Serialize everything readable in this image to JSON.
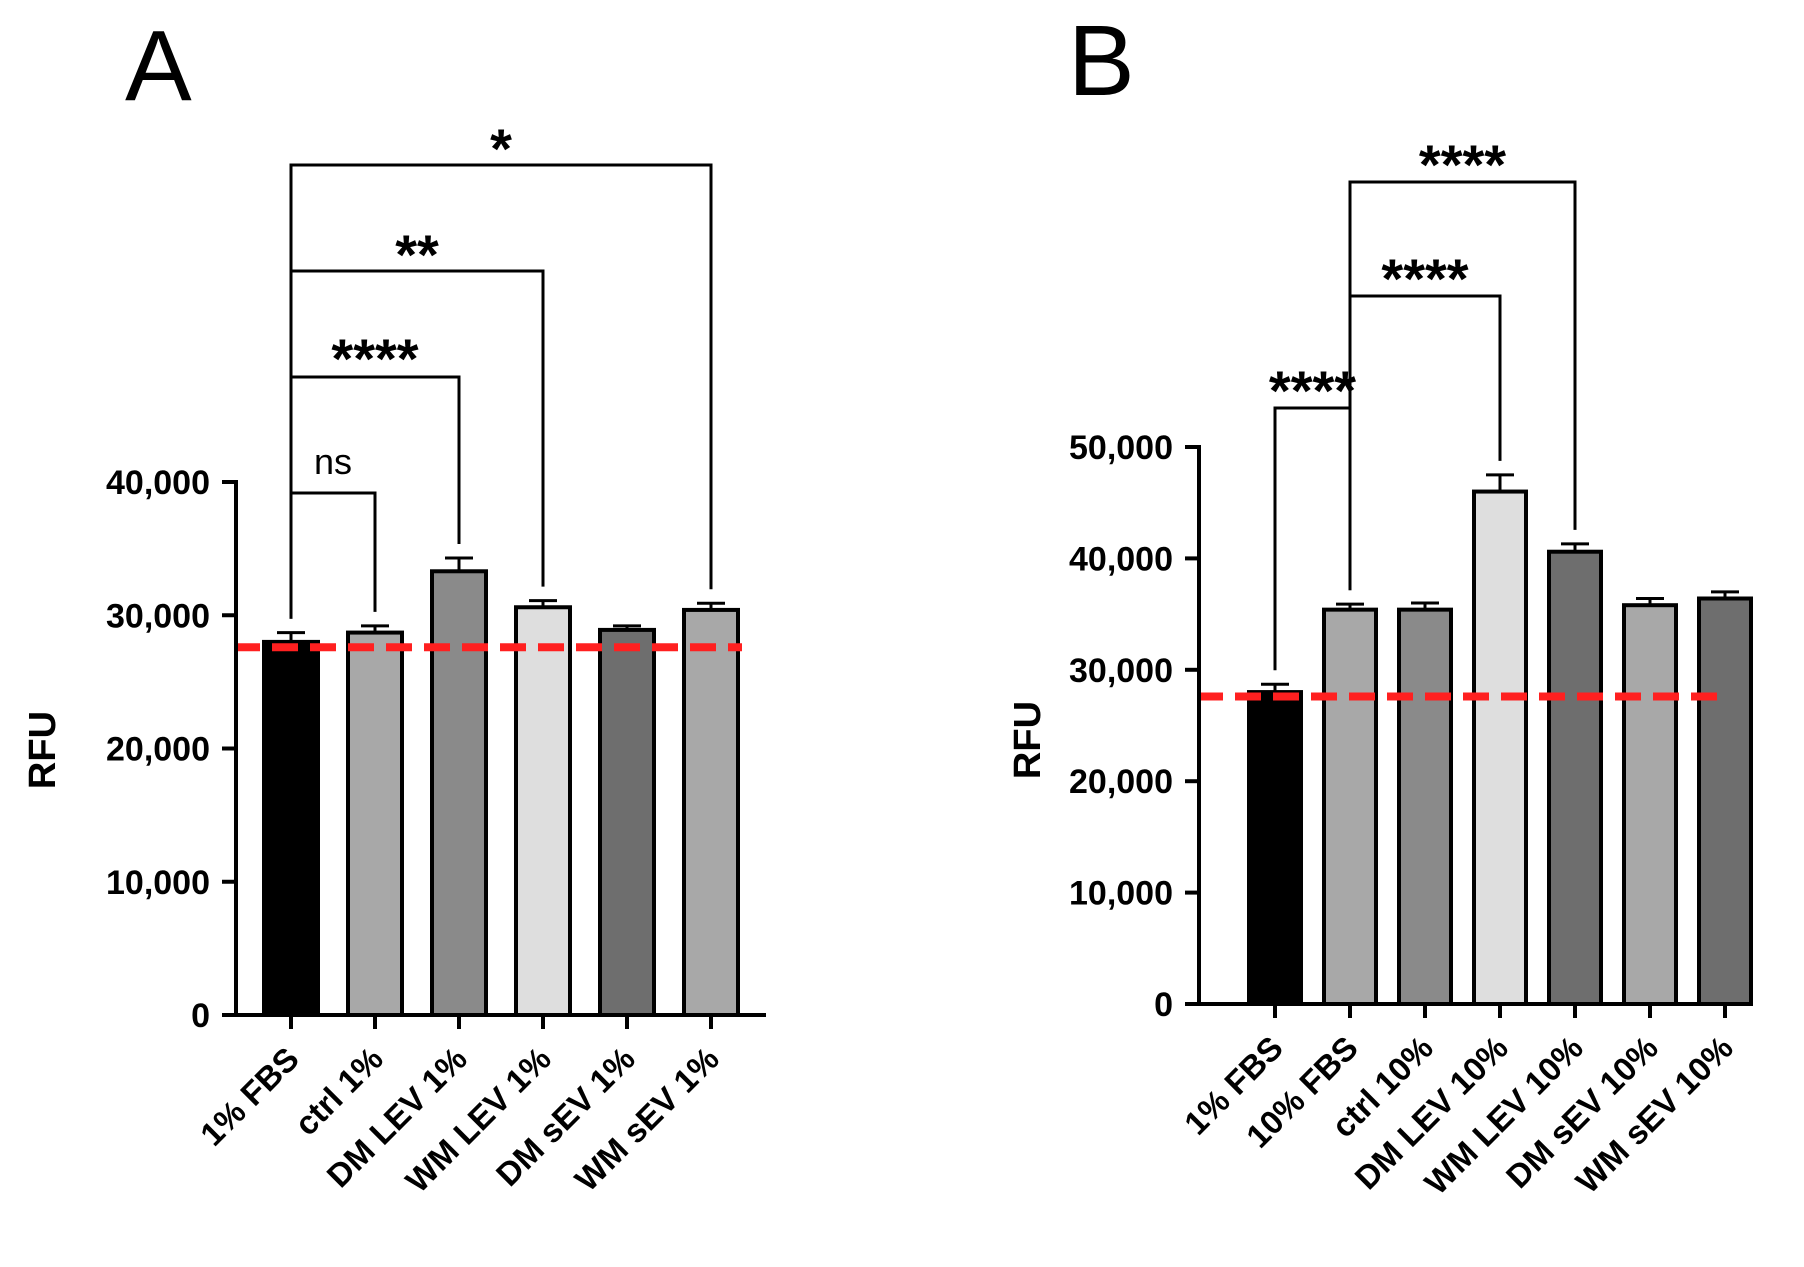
{
  "chart_data": [
    {
      "panel": "A",
      "type": "bar",
      "ylabel": "RFU",
      "xlabel": "",
      "ylim": [
        0,
        40000
      ],
      "yticks": [
        0,
        10000,
        20000,
        30000,
        40000
      ],
      "ytick_labels": [
        "0",
        "10,000",
        "20,000",
        "30,000",
        "40,000"
      ],
      "categories": [
        "1% FBS",
        "ctrl 1%",
        "DM LEV 1%",
        "WM LEV 1%",
        "DM sEV 1%",
        "WM sEV 1%"
      ],
      "values": [
        28000,
        28700,
        33300,
        30600,
        28900,
        30400
      ],
      "errors": [
        700,
        500,
        1000,
        500,
        300,
        500
      ],
      "colors": [
        "#000000",
        "#a8a8a8",
        "#8a8a8a",
        "#dedede",
        "#6e6e6e",
        "#a8a8a8"
      ],
      "reference_line": {
        "value": 27600,
        "color": "#ff2020",
        "style": "dashed"
      },
      "comparisons": [
        {
          "from": 0,
          "to": 1,
          "label": "ns"
        },
        {
          "from": 0,
          "to": 2,
          "label": "****"
        },
        {
          "from": 0,
          "to": 3,
          "label": "**"
        },
        {
          "from": 0,
          "to": 5,
          "label": "*"
        }
      ]
    },
    {
      "panel": "B",
      "type": "bar",
      "ylabel": "RFU",
      "xlabel": "",
      "ylim": [
        0,
        50000
      ],
      "yticks": [
        0,
        10000,
        20000,
        30000,
        40000,
        50000
      ],
      "ytick_labels": [
        "0",
        "10,000",
        "20,000",
        "30,000",
        "40,000",
        "50,000"
      ],
      "categories": [
        "1% FBS",
        "10% FBS",
        "ctrl 10%",
        "DM LEV 10%",
        "WM LEV 10%",
        "DM sEV 10%",
        "WM sEV 10%"
      ],
      "values": [
        28000,
        35400,
        35400,
        46000,
        40600,
        35800,
        36400
      ],
      "errors": [
        700,
        500,
        600,
        1500,
        700,
        600,
        600
      ],
      "colors": [
        "#000000",
        "#a8a8a8",
        "#8a8a8a",
        "#dedede",
        "#6e6e6e",
        "#a8a8a8",
        "#6e6e6e"
      ],
      "reference_line": {
        "value": 27600,
        "color": "#ff2020",
        "style": "dashed"
      },
      "comparisons": [
        {
          "from": 0,
          "to": 1,
          "label": "****"
        },
        {
          "from": 1,
          "to": 3,
          "label": "****"
        },
        {
          "from": 1,
          "to": 4,
          "label": "****"
        }
      ]
    }
  ]
}
